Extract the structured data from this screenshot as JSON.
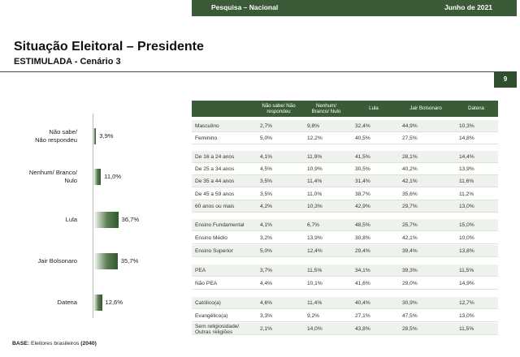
{
  "header": {
    "survey": "Pesquisa – Nacional",
    "date": "Junho de 2021"
  },
  "title": "Situação Eleitoral – Presidente",
  "subtitle": "ESTIMULADA - Cenário 3",
  "page_number": "9",
  "chart_data": {
    "type": "bar",
    "orientation": "horizontal",
    "categories": [
      "Não sabe/\nNão respondeu",
      "Nenhum/ Branco/\nNulo",
      "Lula",
      "Jair Bolsonaro",
      "Datena"
    ],
    "values": [
      3.9,
      11.0,
      36.7,
      35.7,
      12.6
    ],
    "value_labels": [
      "3,9%",
      "11,0%",
      "36,7%",
      "35,7%",
      "12,6%"
    ],
    "xlim": [
      0,
      40
    ],
    "grid": false,
    "legend": "none"
  },
  "table": {
    "headers": [
      "",
      "Não sabe/ Não\nrespondeu",
      "Nenhum/\nBranco/ Nulo",
      "Lula",
      "Jair Bolsonaro",
      "Datena"
    ],
    "groups": [
      {
        "rows": [
          [
            "Masculino",
            "2,7%",
            "9,8%",
            "32,4%",
            "44,9%",
            "10,3%"
          ],
          [
            "Feminino",
            "5,0%",
            "12,2%",
            "40,5%",
            "27,5%",
            "14,8%"
          ]
        ]
      },
      {
        "rows": [
          [
            "De 16 a 24 anos",
            "4,1%",
            "11,9%",
            "41,5%",
            "28,1%",
            "14,4%"
          ],
          [
            "De 25 a 34 anos",
            "4,5%",
            "10,9%",
            "30,5%",
            "40,2%",
            "13,9%"
          ],
          [
            "De 35 a 44 anos",
            "3,5%",
            "11,4%",
            "31,4%",
            "42,1%",
            "11,6%"
          ],
          [
            "De 45 a 59 anos",
            "3,5%",
            "11,0%",
            "38,7%",
            "35,6%",
            "11,2%"
          ],
          [
            "60 anos ou mais",
            "4,2%",
            "10,3%",
            "42,9%",
            "29,7%",
            "13,0%"
          ]
        ]
      },
      {
        "rows": [
          [
            "Ensino Fundamental",
            "4,1%",
            "6,7%",
            "48,5%",
            "25,7%",
            "15,0%"
          ],
          [
            "Ensino Médio",
            "3,2%",
            "13,9%",
            "30,8%",
            "42,1%",
            "10,0%"
          ],
          [
            "Ensino Superior",
            "5,0%",
            "12,4%",
            "29,4%",
            "39,4%",
            "13,8%"
          ]
        ]
      },
      {
        "rows": [
          [
            "PEA",
            "3,7%",
            "11,5%",
            "34,1%",
            "39,3%",
            "11,5%"
          ],
          [
            "Não PEA",
            "4,4%",
            "10,1%",
            "41,6%",
            "29,0%",
            "14,9%"
          ]
        ]
      },
      {
        "rows": [
          [
            "Católico(a)",
            "4,6%",
            "11,4%",
            "40,4%",
            "30,9%",
            "12,7%"
          ],
          [
            "Evangélico(a)",
            "3,3%",
            "9,2%",
            "27,1%",
            "47,5%",
            "13,0%"
          ],
          [
            "Sem religiosidade/\nOutras religiões",
            "2,1%",
            "14,0%",
            "43,8%",
            "28,5%",
            "11,5%"
          ]
        ]
      }
    ]
  },
  "base": {
    "label": "BASE:",
    "text": " Eleitores brasileiros ",
    "count": "(2040)"
  }
}
